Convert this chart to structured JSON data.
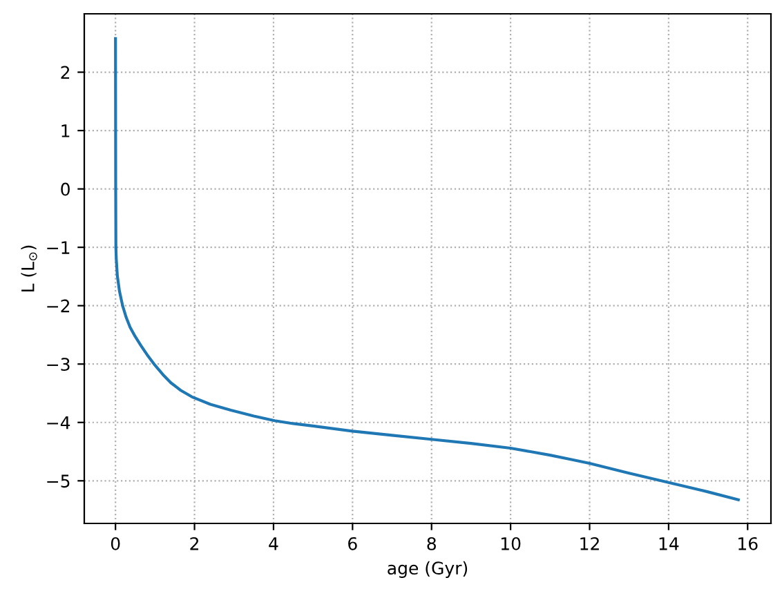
{
  "chart_data": {
    "type": "line",
    "xlabel": "age (Gyr)",
    "ylabel": "L (L$_{⊙}$)",
    "series": [
      {
        "color": "#1f77b4",
        "x": [
          0,
          0.005,
          0.01,
          0.02,
          0.047,
          0.1,
          0.18,
          0.27,
          0.37,
          0.5,
          0.64,
          0.8,
          1.0,
          1.2,
          1.4,
          1.65,
          1.93,
          2.4,
          2.92,
          3.5,
          4.03,
          4.5,
          5,
          6,
          7,
          8,
          9,
          10,
          10.5,
          11,
          11.5,
          12,
          13,
          14,
          15,
          15.8
        ],
        "values": [
          2.6,
          0.0,
          -1.0,
          -1.2,
          -1.49,
          -1.75,
          -2.0,
          -2.2,
          -2.37,
          -2.53,
          -2.68,
          -2.84,
          -3.02,
          -3.18,
          -3.32,
          -3.45,
          -3.56,
          -3.69,
          -3.79,
          -3.89,
          -3.97,
          -4.02,
          -4.06,
          -4.15,
          -4.22,
          -4.29,
          -4.36,
          -4.44,
          -4.5,
          -4.56,
          -4.63,
          -4.7,
          -4.87,
          -5.03,
          -5.19,
          -5.33
        ]
      }
    ],
    "xlim": [
      -0.79,
      16.59
    ],
    "ylim": [
      -5.73,
      3.0
    ],
    "xticks": [
      0,
      2,
      4,
      6,
      8,
      10,
      12,
      14,
      16
    ],
    "yticks": [
      {
        "value": -5,
        "label": "−5"
      },
      {
        "value": -4,
        "label": "−4"
      },
      {
        "value": -3,
        "label": "−3"
      },
      {
        "value": -2,
        "label": "−2"
      },
      {
        "value": -1,
        "label": "−1"
      },
      0,
      1,
      2
    ],
    "grid": true,
    "marker": "none",
    "line_style": "solid"
  }
}
